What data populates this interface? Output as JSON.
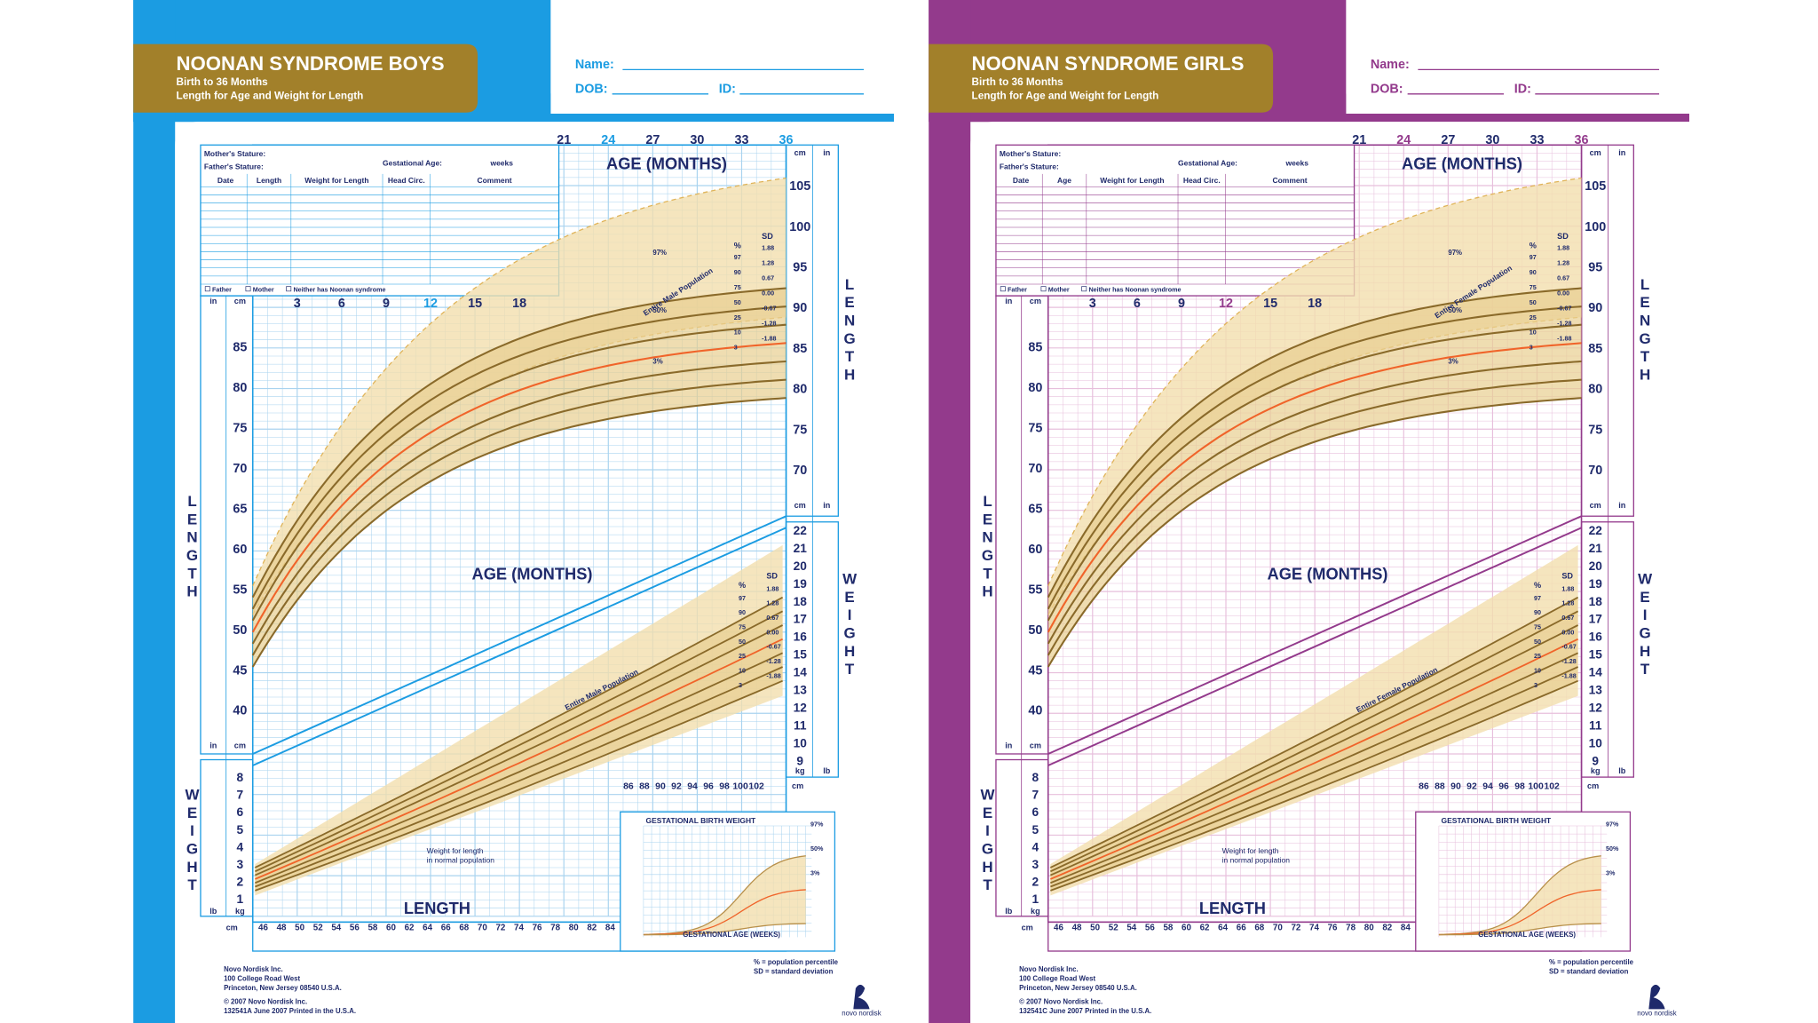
{
  "panels": [
    {
      "title": "NOONAN SYNDROME BOYS",
      "subtitle": [
        "Birth to 36 Months",
        "Length for Age and Weight for Length"
      ],
      "color": "#1b9ce2",
      "grid_color": "#a9d3ef",
      "columns": [
        "Date",
        "Length",
        "Weight for Length",
        "Head Circ.",
        "Comment"
      ],
      "population": "Entire Male Population",
      "code": "132541A June 2007 Printed in the U.S.A."
    },
    {
      "title": "NOONAN SYNDROME GIRLS",
      "subtitle": [
        "Birth to 36 Months",
        "Length for Age and Weight for Length"
      ],
      "color": "#933a8c",
      "grid_color": "#e7bfdc",
      "columns": [
        "Date",
        "Age",
        "Weight for Length",
        "Head Circ.",
        "Comment"
      ],
      "population": "Entire Female Population",
      "code": "132541C June 2007 Printed in the U.S.A."
    }
  ],
  "form": {
    "name": "Name:",
    "dob": "DOB:",
    "id": "ID:",
    "mother": "Mother's Stature:",
    "father": "Father's Stature:",
    "gestational": "Gestational Age:",
    "weeks": "weeks",
    "checkboxes": [
      "Father",
      "Mother",
      "Neither has Noonan syndrome"
    ]
  },
  "axis": {
    "age_title": "AGE (MONTHS)",
    "length_title": "LENGTH",
    "weight_title": "WEIGHT",
    "ages_low": [
      3,
      6,
      9,
      12,
      15,
      18
    ],
    "ages_high": [
      21,
      24,
      27,
      30,
      33,
      36
    ],
    "length_cm_left": [
      85,
      80,
      75,
      70,
      65,
      60,
      55,
      50,
      45,
      40
    ],
    "length_cm_right": [
      105,
      100,
      95,
      90,
      85,
      80,
      75,
      70
    ],
    "weight_kg_right": [
      22,
      21,
      20,
      19,
      18,
      17,
      16,
      15,
      14,
      13,
      12,
      11,
      10,
      9
    ],
    "weight_kg_left": [
      8,
      7,
      6,
      5,
      4,
      3,
      2,
      1
    ],
    "length_bottom": [
      46,
      48,
      50,
      52,
      54,
      56,
      58,
      60,
      62,
      64,
      66,
      68,
      70,
      72,
      74,
      76,
      78,
      80,
      82,
      84
    ],
    "length_bottom_right": [
      86,
      88,
      90,
      92,
      94,
      96,
      98,
      100,
      102
    ],
    "units": {
      "cm": "cm",
      "in": "in",
      "kg": "kg",
      "lb": "lb"
    }
  },
  "curves": {
    "percent": "%",
    "sd": "SD",
    "percentiles": [
      97,
      90,
      75,
      50,
      25,
      10,
      3
    ],
    "sd_values": [
      1.88,
      1.28,
      0.67,
      {
        "value": 0,
        "label": "0.00"
      },
      -0.67,
      -1.28,
      -1.88
    ],
    "normal_labels": [
      "97%",
      "50%",
      "3%"
    ],
    "normal_weight": [
      "Weight for length",
      "in normal population"
    ]
  },
  "inset": {
    "title": "GESTATIONAL BIRTH WEIGHT",
    "x_title": "GESTATIONAL AGE (WEEKS)",
    "labels": [
      "97%",
      "50%",
      "3%"
    ]
  },
  "footer": {
    "address": [
      "Novo Nordisk Inc.",
      "100 College Road West",
      "Princeton, New Jersey 08540 U.S.A."
    ],
    "copyright": "© 2007 Novo Nordisk Inc.",
    "legend": [
      "% = population percentile",
      "SD = standard deviation"
    ],
    "logo": "novo nordisk"
  }
}
